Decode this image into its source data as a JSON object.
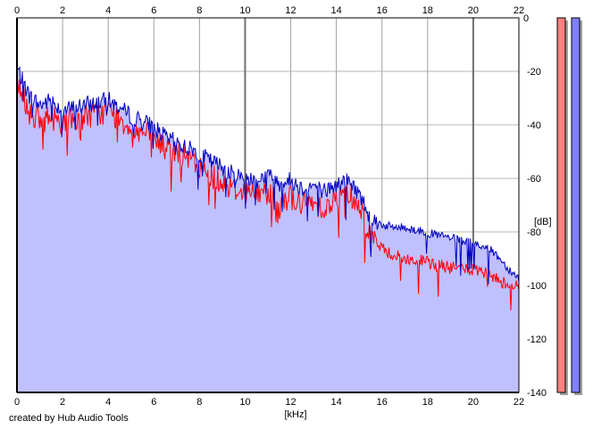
{
  "chart_data": {
    "type": "area",
    "xlabel": "[kHz]",
    "ylabel": "[dB]",
    "xlim": [
      0,
      22
    ],
    "ylim": [
      -140,
      0
    ],
    "x_ticks": [
      0,
      2,
      4,
      6,
      8,
      10,
      12,
      14,
      16,
      18,
      20,
      22
    ],
    "y_ticks": [
      0,
      -20,
      -40,
      -60,
      -80,
      -100,
      -120,
      -140
    ],
    "grid": true,
    "fill_color": "#c0c0ff",
    "series": [
      {
        "color": "#0000c0",
        "x": [
          0,
          0.5,
          1,
          1.5,
          2,
          2.5,
          3,
          3.5,
          4,
          4.5,
          5,
          5.5,
          6,
          6.5,
          7,
          7.5,
          8,
          8.5,
          9,
          9.5,
          10,
          10.5,
          11,
          11.5,
          12,
          12.5,
          13,
          13.5,
          14,
          14.5,
          15,
          15.5,
          16,
          16.5,
          17,
          17.5,
          18,
          18.5,
          19,
          19.5,
          20,
          20.5,
          21,
          21.5,
          22
        ],
        "values": [
          -18,
          -28,
          -32,
          -30,
          -34,
          -33,
          -32,
          -31,
          -30,
          -33,
          -36,
          -38,
          -40,
          -44,
          -46,
          -48,
          -50,
          -53,
          -55,
          -58,
          -59,
          -60,
          -58,
          -61,
          -60,
          -63,
          -62,
          -64,
          -62,
          -60,
          -65,
          -74,
          -77,
          -78,
          -78,
          -79,
          -80,
          -81,
          -82,
          -83,
          -84,
          -85,
          -88,
          -93,
          -97
        ]
      },
      {
        "color": "#ff0000",
        "x": [
          0,
          0.5,
          1,
          1.5,
          2,
          2.5,
          3,
          3.5,
          4,
          4.5,
          5,
          5.5,
          6,
          6.5,
          7,
          7.5,
          8,
          8.5,
          9,
          9.5,
          10,
          10.5,
          11,
          11.5,
          12,
          12.5,
          13,
          13.5,
          14,
          14.5,
          15,
          15.5,
          16,
          16.5,
          17,
          17.5,
          18,
          18.5,
          19,
          19.5,
          20,
          20.5,
          21,
          21.5,
          22
        ],
        "values": [
          -22,
          -33,
          -38,
          -36,
          -38,
          -37,
          -36,
          -35,
          -34,
          -37,
          -40,
          -42,
          -44,
          -48,
          -49,
          -52,
          -55,
          -58,
          -60,
          -63,
          -64,
          -65,
          -64,
          -67,
          -66,
          -69,
          -68,
          -70,
          -67,
          -64,
          -69,
          -80,
          -86,
          -88,
          -90,
          -90,
          -91,
          -92,
          -93,
          -93,
          -94,
          -95,
          -97,
          -99,
          -100
        ]
      }
    ],
    "level_meters": [
      {
        "color": "#ff8080"
      },
      {
        "color": "#8080ff"
      }
    ]
  },
  "footer": {
    "credit": "created by Hub Audio Tools"
  }
}
